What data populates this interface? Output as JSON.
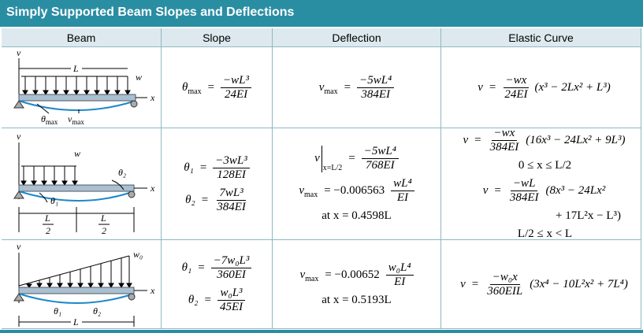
{
  "header": {
    "title": "Simply Supported Beam Slopes and Deflections"
  },
  "table": {
    "columns": [
      "Beam",
      "Slope",
      "Deflection",
      "Elastic Curve"
    ],
    "rows": [
      {
        "beam": {
          "v": "v",
          "L": "L",
          "w": "w",
          "x": "x",
          "theta": "θ",
          "theta_sub": "max",
          "vmax": "v",
          "vmax_sub": "max"
        },
        "slope": [
          {
            "lhs": "θ",
            "sub": "max",
            "eq": "=",
            "num": "−wL³",
            "den": "24EI"
          }
        ],
        "deflection": [
          {
            "lhs": "v",
            "sub": "max",
            "eq": "=",
            "num": "−5wL⁴",
            "den": "384EI"
          }
        ],
        "curve": [
          {
            "lhs": "v",
            "eq": "=",
            "num": "−wx",
            "den": "24EI",
            "tail": "(x³ − 2Lx² + L³)"
          }
        ]
      },
      {
        "beam": {
          "v": "v",
          "w": "w",
          "theta2": "θ₂",
          "x": "x",
          "theta1": "θ₁",
          "L1": "L",
          "two1": "2",
          "L2": "L",
          "two2": "2"
        },
        "slope": [
          {
            "lhs": "θ₁",
            "eq": "=",
            "num": "−3wL³",
            "den": "128EI"
          },
          {
            "lhs": "θ₂",
            "eq": "=",
            "num": "7wL³",
            "den": "384EI"
          }
        ],
        "deflection": [
          {
            "lhs": "v",
            "bar_sub": "x=L/2",
            "eq": "=",
            "num": "−5wL⁴",
            "den": "768EI"
          },
          {
            "lhs": "v",
            "sub": "max",
            "eq": "= −0.006563",
            "num": "wL⁴",
            "den": "EI"
          },
          {
            "text": "at x = 0.4598L"
          }
        ],
        "curve": [
          {
            "lhs": "v",
            "eq": "=",
            "num": "−wx",
            "den": "384EI",
            "tail": "(16x³ − 24Lx² + 9L³)"
          },
          {
            "text": "0 ≤ x ≤ L/2"
          },
          {
            "lhs": "v",
            "eq": "=",
            "num": "−wL",
            "den": "384EI",
            "tail": "(8x³ − 24Lx²"
          },
          {
            "text": "+ 17L²x − L³)"
          },
          {
            "text": "L/2 ≤ x < L"
          }
        ]
      },
      {
        "beam": {
          "v": "v",
          "w": "w₀",
          "x": "x",
          "theta1": "θ₁",
          "theta2": "θ₂",
          "L": "L"
        },
        "slope": [
          {
            "lhs": "θ₁",
            "eq": "=",
            "num": "−7w₀L³",
            "den": "360EI"
          },
          {
            "lhs": "θ₂",
            "eq": "=",
            "num": "w₀L³",
            "den": "45EI"
          }
        ],
        "deflection": [
          {
            "lhs": "v",
            "sub": "max",
            "eq": "= −0.00652",
            "num": "w₀L⁴",
            "den": "EI"
          },
          {
            "text": "at x = 0.5193L"
          }
        ],
        "curve": [
          {
            "lhs": "v",
            "eq": "=",
            "num": "−w₀x",
            "den": "360EIL",
            "tail": "(3x⁴ − 10L²x² + 7L⁴)"
          }
        ]
      }
    ]
  }
}
